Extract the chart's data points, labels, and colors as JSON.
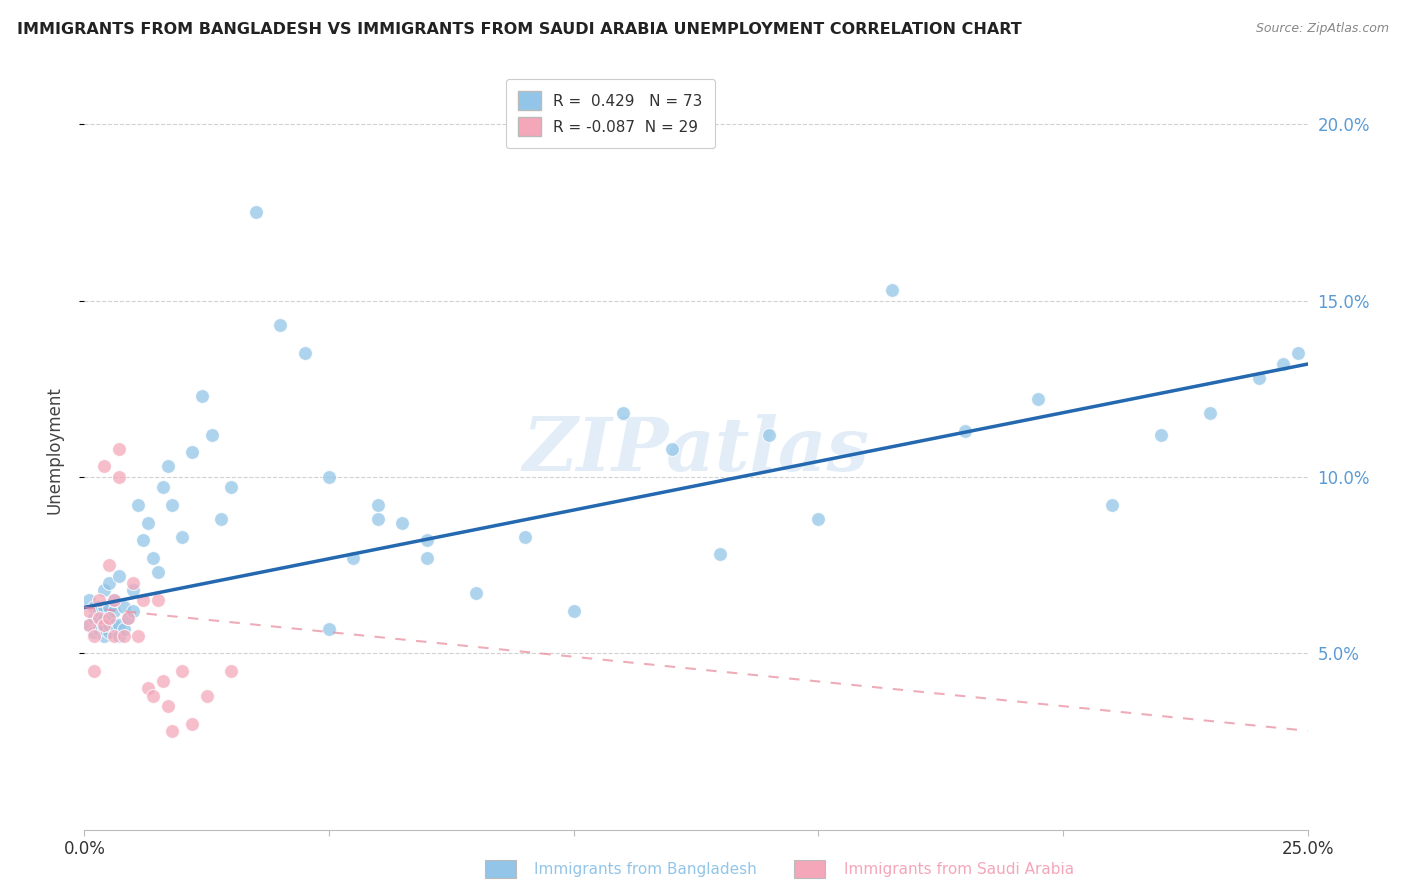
{
  "title": "IMMIGRANTS FROM BANGLADESH VS IMMIGRANTS FROM SAUDI ARABIA UNEMPLOYMENT CORRELATION CHART",
  "source": "Source: ZipAtlas.com",
  "ylabel": "Unemployment",
  "xlim": [
    0.0,
    0.25
  ],
  "ylim": [
    0.0,
    0.215
  ],
  "yticks": [
    0.05,
    0.1,
    0.15,
    0.2
  ],
  "ytick_labels": [
    "5.0%",
    "10.0%",
    "15.0%",
    "20.0%"
  ],
  "xticks": [
    0.0,
    0.05,
    0.1,
    0.15,
    0.2,
    0.25
  ],
  "xtick_labels": [
    "0.0%",
    "",
    "",
    "",
    "",
    "25.0%"
  ],
  "bangladesh_R": 0.429,
  "bangladesh_N": 73,
  "saudi_R": -0.087,
  "saudi_N": 29,
  "bangladesh_color": "#92C5E8",
  "saudi_color": "#F4A7B9",
  "line_bangladesh_color": "#2468B0",
  "line_saudi_color": "#E8889A",
  "background_color": "#FFFFFF",
  "watermark": "ZIPatlas",
  "grid_color": "#CCCCCC",
  "title_color": "#222222",
  "axis_label_color": "#444444",
  "right_tick_color": "#5B9BD5",
  "bangladesh_line_start_y": 0.063,
  "bangladesh_line_end_y": 0.132,
  "saudi_line_start_y": 0.063,
  "saudi_line_end_y": 0.028,
  "bangladesh_x": [
    0.001,
    0.001,
    0.002,
    0.002,
    0.002,
    0.003,
    0.003,
    0.003,
    0.003,
    0.003,
    0.004,
    0.004,
    0.004,
    0.004,
    0.004,
    0.005,
    0.005,
    0.005,
    0.005,
    0.005,
    0.006,
    0.006,
    0.006,
    0.007,
    0.007,
    0.007,
    0.008,
    0.008,
    0.009,
    0.01,
    0.01,
    0.011,
    0.012,
    0.013,
    0.014,
    0.015,
    0.016,
    0.017,
    0.018,
    0.02,
    0.022,
    0.024,
    0.026,
    0.028,
    0.03,
    0.035,
    0.04,
    0.045,
    0.05,
    0.055,
    0.06,
    0.065,
    0.07,
    0.08,
    0.09,
    0.1,
    0.11,
    0.12,
    0.13,
    0.14,
    0.15,
    0.165,
    0.18,
    0.195,
    0.21,
    0.22,
    0.23,
    0.24,
    0.245,
    0.248,
    0.05,
    0.06,
    0.07
  ],
  "bangladesh_y": [
    0.065,
    0.058,
    0.06,
    0.063,
    0.056,
    0.058,
    0.06,
    0.063,
    0.057,
    0.062,
    0.055,
    0.057,
    0.06,
    0.063,
    0.068,
    0.056,
    0.058,
    0.06,
    0.063,
    0.07,
    0.058,
    0.062,
    0.065,
    0.055,
    0.058,
    0.072,
    0.057,
    0.063,
    0.06,
    0.062,
    0.068,
    0.092,
    0.082,
    0.087,
    0.077,
    0.073,
    0.097,
    0.103,
    0.092,
    0.083,
    0.107,
    0.123,
    0.112,
    0.088,
    0.097,
    0.175,
    0.143,
    0.135,
    0.057,
    0.077,
    0.092,
    0.087,
    0.082,
    0.067,
    0.083,
    0.062,
    0.118,
    0.108,
    0.078,
    0.112,
    0.088,
    0.153,
    0.113,
    0.122,
    0.092,
    0.112,
    0.118,
    0.128,
    0.132,
    0.135,
    0.1,
    0.088,
    0.077
  ],
  "saudi_x": [
    0.001,
    0.001,
    0.002,
    0.002,
    0.003,
    0.003,
    0.004,
    0.004,
    0.005,
    0.005,
    0.006,
    0.006,
    0.007,
    0.007,
    0.008,
    0.009,
    0.01,
    0.011,
    0.012,
    0.013,
    0.014,
    0.015,
    0.016,
    0.017,
    0.018,
    0.02,
    0.022,
    0.025,
    0.03
  ],
  "saudi_y": [
    0.058,
    0.062,
    0.055,
    0.045,
    0.06,
    0.065,
    0.058,
    0.103,
    0.06,
    0.075,
    0.055,
    0.065,
    0.1,
    0.108,
    0.055,
    0.06,
    0.07,
    0.055,
    0.065,
    0.04,
    0.038,
    0.065,
    0.042,
    0.035,
    0.028,
    0.045,
    0.03,
    0.038,
    0.045
  ]
}
